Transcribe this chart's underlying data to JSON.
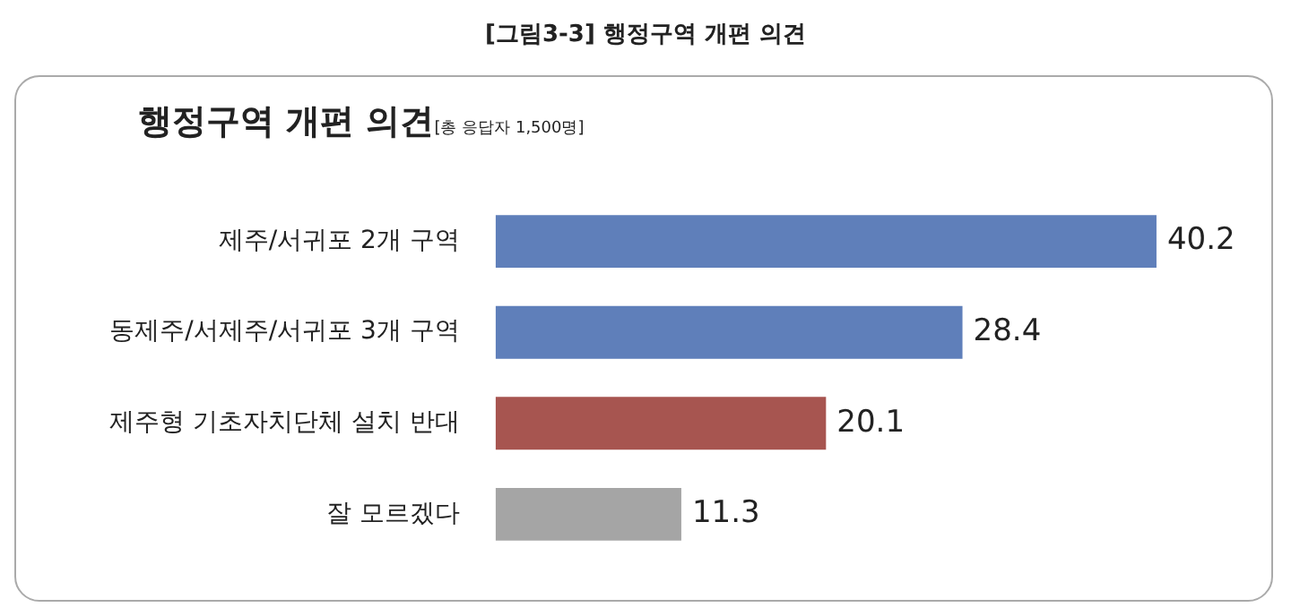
{
  "chart_data": {
    "type": "bar",
    "orientation": "horizontal",
    "title": "[그림3-3] 행정구역 개편 의견",
    "subtitle": "행정구역 개편 의견",
    "annotations": [
      "[총 응답자 1,500명]"
    ],
    "categories": [
      "제주/서귀포 2개 구역",
      "동제주/서제주/서귀포 3개 구역",
      "제주형 기초자치단체 설치 반대",
      "잘 모르겠다"
    ],
    "values": [
      40.2,
      28.4,
      20.1,
      11.3
    ],
    "colors": [
      "#5f7fba",
      "#5f7fba",
      "#a75550",
      "#a5a5a5"
    ],
    "data_labels": true,
    "tick_labels": "y",
    "legend": false
  }
}
